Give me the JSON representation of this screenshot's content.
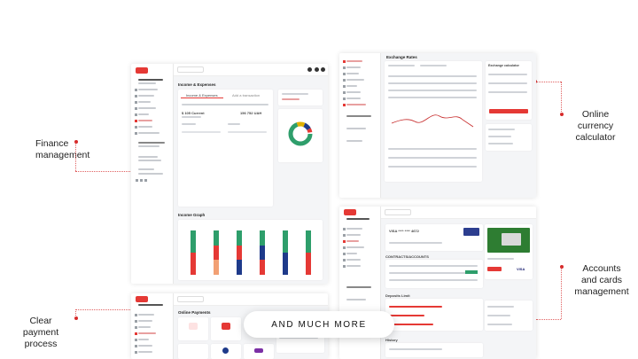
{
  "callouts": {
    "finance": "Finance\nmanagement",
    "payment": "Clear\npayment\nprocess",
    "currency": "Online\ncurrency\ncalculator",
    "accounts": "Accounts\nand cards\nmanagement"
  },
  "center_pill": "AND MUCH MORE",
  "colors": {
    "accent": "#e53935",
    "green": "#2e9e6b",
    "blue": "#1e3a8a",
    "orange": "#f2a074",
    "gold": "#e0b000"
  },
  "screen1": {
    "section_title": "Income & Expenses",
    "tab_income": "Income & Expenses",
    "tab_add": "Add a transaction",
    "graph_title": "Income Graph",
    "current": "$ 105 Current",
    "current_right": "156 752 UAH"
  },
  "screen2": {
    "title": "Exchange Rates",
    "panel_title": "Exchange calculator"
  },
  "screen3": {
    "card_mask": "VISA **** **** 4672",
    "section_contracts": "CONTRACTS/ACCOUNTS",
    "section_deposits": "Deposits Limit",
    "section_history": "History",
    "brand": "VISA"
  },
  "screen4": {
    "title": "Online Payments"
  }
}
